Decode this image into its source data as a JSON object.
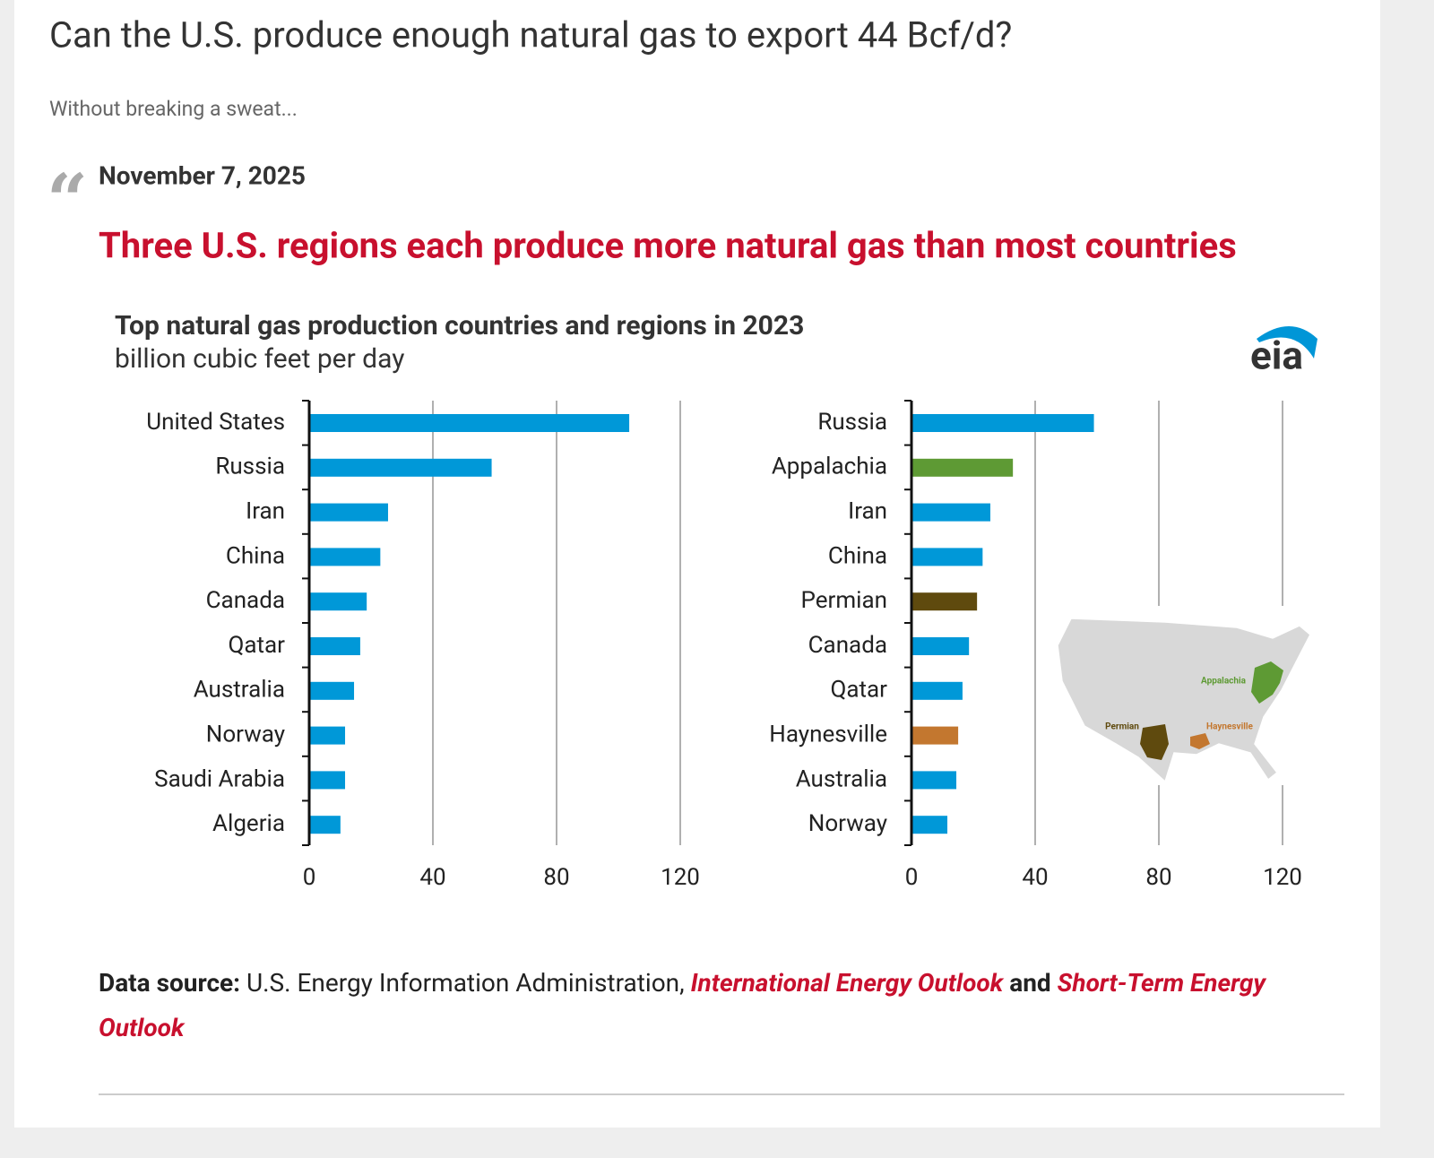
{
  "header": {
    "title": "Can the U.S. produce enough natural gas to export 44 Bcf/d?",
    "subtitle": "Without breaking a sweat..."
  },
  "quote": {
    "date": "November 7, 2025",
    "headline": "Three U.S. regions each produce more natural gas than most countries"
  },
  "figure": {
    "title": "Top natural gas production countries and regions in 2023",
    "unit": "billion cubic feet per day",
    "logo": "eia"
  },
  "map": {
    "labels": [
      "Appalachia",
      "Permian",
      "Haynesville"
    ]
  },
  "chart_data": [
    {
      "type": "bar",
      "orientation": "horizontal",
      "categories": [
        "United States",
        "Russia",
        "Iran",
        "China",
        "Canada",
        "Qatar",
        "Australia",
        "Norway",
        "Saudi Arabia",
        "Algeria"
      ],
      "values": [
        103.5,
        59,
        25.5,
        23,
        18.6,
        16.5,
        14.5,
        11.6,
        11.6,
        10.1
      ],
      "colors": [
        "#0098d8",
        "#0098d8",
        "#0098d8",
        "#0098d8",
        "#0098d8",
        "#0098d8",
        "#0098d8",
        "#0098d8",
        "#0098d8",
        "#0098d8"
      ],
      "xlim": [
        0,
        120
      ],
      "xticks": [
        0,
        40,
        80,
        120
      ],
      "grid": true
    },
    {
      "type": "bar",
      "orientation": "horizontal",
      "categories": [
        "Russia",
        "Appalachia",
        "Iran",
        "China",
        "Permian",
        "Canada",
        "Qatar",
        "Haynesville",
        "Australia",
        "Norway"
      ],
      "values": [
        59,
        32.8,
        25.5,
        23,
        21.2,
        18.6,
        16.5,
        15.1,
        14.5,
        11.6
      ],
      "colors": [
        "#0098d8",
        "#5e9a34",
        "#0098d8",
        "#0098d8",
        "#5f4a0e",
        "#0098d8",
        "#0098d8",
        "#c3772f",
        "#0098d8",
        "#0098d8"
      ],
      "xlim": [
        0,
        120
      ],
      "xticks": [
        0,
        40,
        80,
        120
      ],
      "grid": true
    }
  ],
  "footer": {
    "label": "Data source:",
    "text": " U.S. Energy Information Administration, ",
    "link1": "International Energy Outlook",
    "and": " and ",
    "link2": "Short-Term Energy Outlook"
  }
}
